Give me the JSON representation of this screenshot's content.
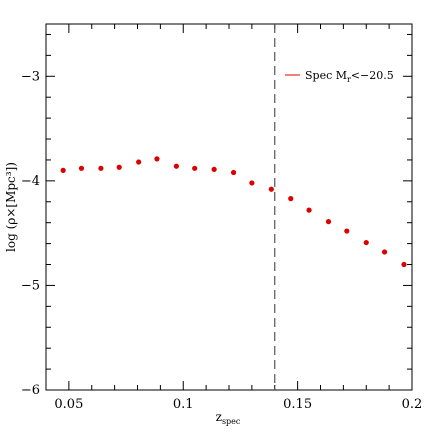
{
  "chart_data": {
    "type": "scatter",
    "title": "",
    "xlabel": "z",
    "xlabel_sub": "spec",
    "ylabel": "log (ρ×[Mpc³])",
    "xlim": [
      0.04,
      0.2
    ],
    "ylim": [
      -6,
      -2.5
    ],
    "x_ticks": [
      0.05,
      0.1,
      0.15,
      0.2
    ],
    "x_tick_labels": [
      "0.05",
      "0.1",
      "0.15",
      "0.2"
    ],
    "y_ticks": [
      -3,
      -4,
      -5,
      -6
    ],
    "y_tick_labels": [
      "−3",
      "−4",
      "−5",
      "−6"
    ],
    "reference_line": {
      "x": 0.14,
      "style": "dashed",
      "color": "#555555"
    },
    "legend": {
      "label": "Spec M",
      "label_sub": "r",
      "label_rest": "<−20.5",
      "position": "top-right"
    },
    "series": [
      {
        "name": "Spec Mr<−20.5",
        "color": "#dd0000",
        "points": [
          [
            0.0475,
            -3.9
          ],
          [
            0.0555,
            -3.88
          ],
          [
            0.064,
            -3.88
          ],
          [
            0.072,
            -3.87
          ],
          [
            0.0805,
            -3.82
          ],
          [
            0.0885,
            -3.79
          ],
          [
            0.097,
            -3.86
          ],
          [
            0.105,
            -3.88
          ],
          [
            0.1135,
            -3.89
          ],
          [
            0.122,
            -3.92
          ],
          [
            0.13,
            -4.02
          ],
          [
            0.1385,
            -4.08
          ],
          [
            0.147,
            -4.17
          ],
          [
            0.155,
            -4.28
          ],
          [
            0.1635,
            -4.39
          ],
          [
            0.1715,
            -4.48
          ],
          [
            0.18,
            -4.59
          ],
          [
            0.188,
            -4.68
          ],
          [
            0.1965,
            -4.8
          ]
        ]
      }
    ]
  }
}
